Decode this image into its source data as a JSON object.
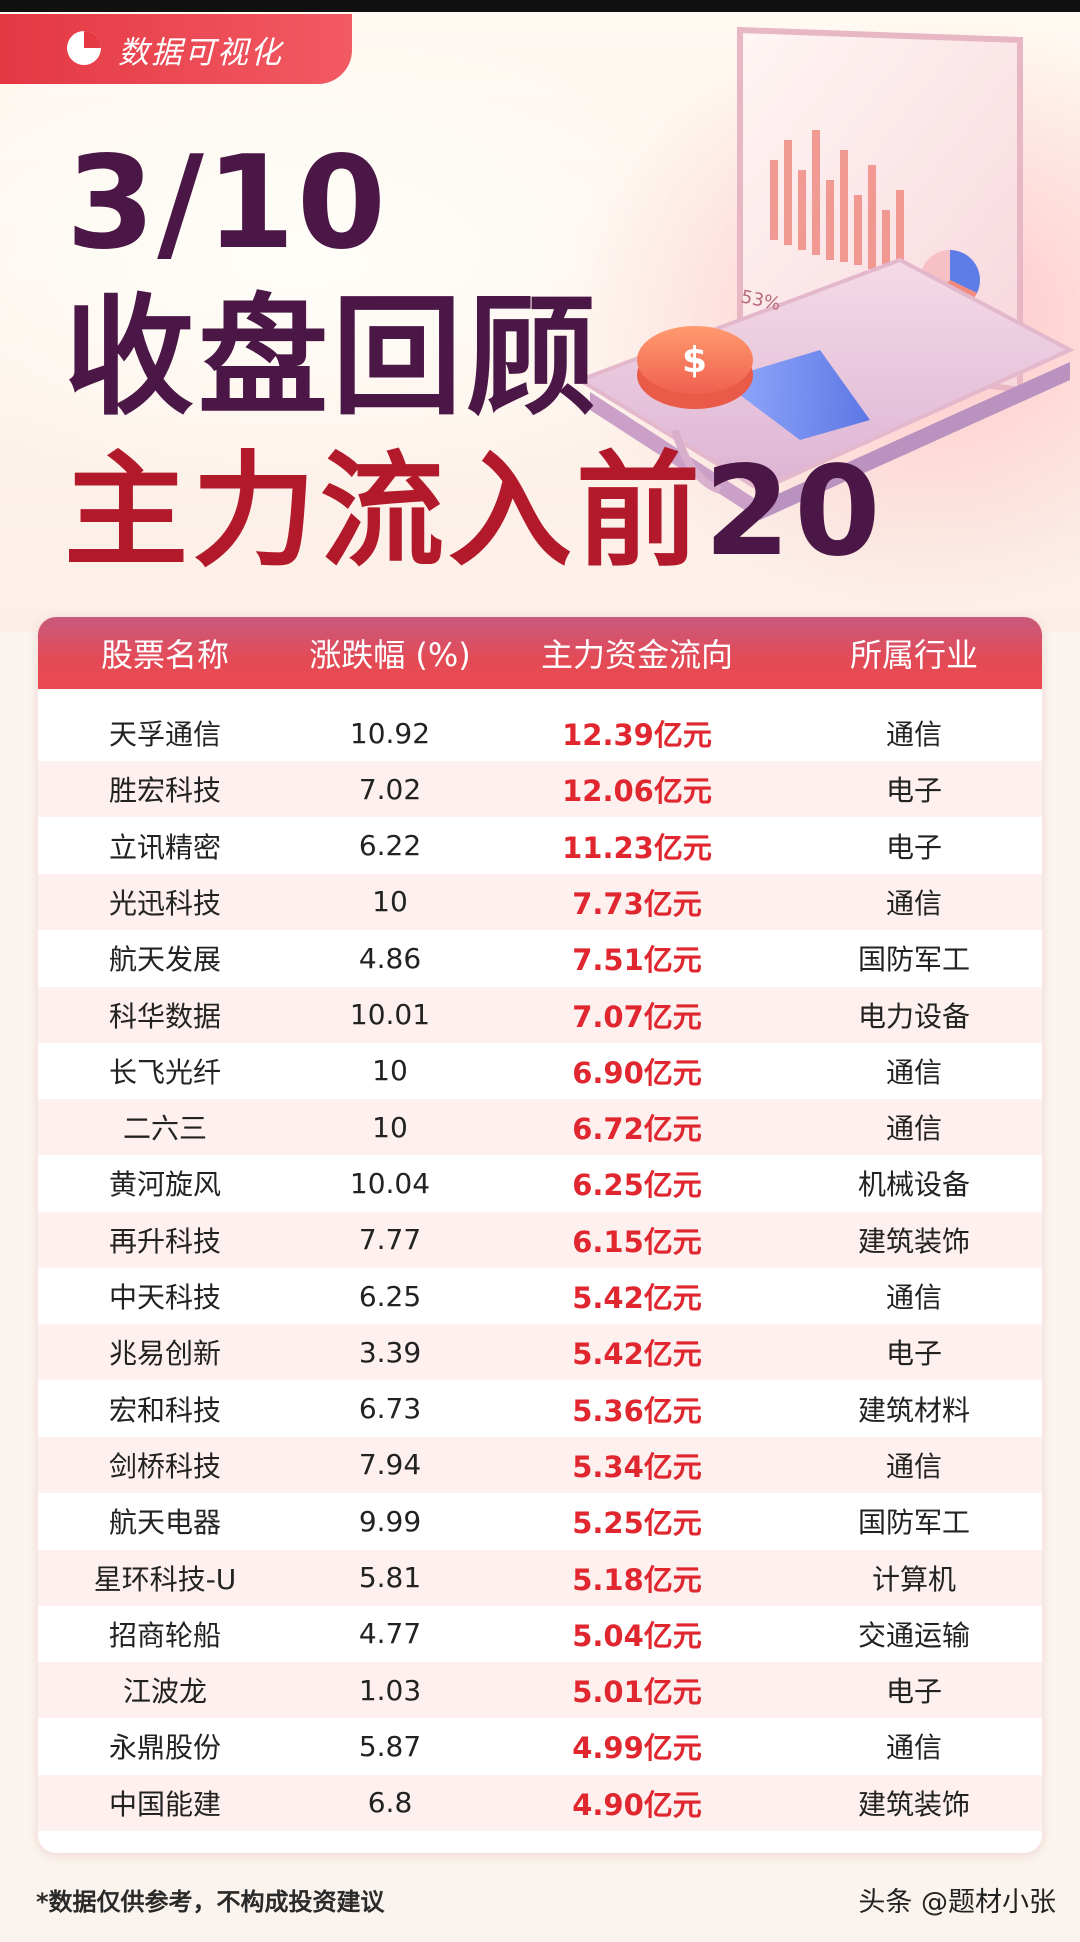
{
  "badge": {
    "label": "数据可视化",
    "icon": "pie-chart-icon"
  },
  "title": {
    "date": "3/10",
    "main": "收盘回顾",
    "sub_text": "主力流入前",
    "sub_num": "20"
  },
  "illustration": {
    "percent_label": "53%",
    "currency_symbol": "$"
  },
  "table": {
    "headers": [
      "股票名称",
      "涨跌幅 (%)",
      "主力资金流向",
      "所属行业"
    ],
    "rows": [
      [
        "天孚通信",
        "10.92",
        "12.39亿元",
        "通信"
      ],
      [
        "胜宏科技",
        "7.02",
        "12.06亿元",
        "电子"
      ],
      [
        "立讯精密",
        "6.22",
        "11.23亿元",
        "电子"
      ],
      [
        "光迅科技",
        "10",
        "7.73亿元",
        "通信"
      ],
      [
        "航天发展",
        "4.86",
        "7.51亿元",
        "国防军工"
      ],
      [
        "科华数据",
        "10.01",
        "7.07亿元",
        "电力设备"
      ],
      [
        "长飞光纤",
        "10",
        "6.90亿元",
        "通信"
      ],
      [
        "二六三",
        "10",
        "6.72亿元",
        "通信"
      ],
      [
        "黄河旋风",
        "10.04",
        "6.25亿元",
        "机械设备"
      ],
      [
        "再升科技",
        "7.77",
        "6.15亿元",
        "建筑装饰"
      ],
      [
        "中天科技",
        "6.25",
        "5.42亿元",
        "通信"
      ],
      [
        "兆易创新",
        "3.39",
        "5.42亿元",
        "电子"
      ],
      [
        "宏和科技",
        "6.73",
        "5.36亿元",
        "建筑材料"
      ],
      [
        "剑桥科技",
        "7.94",
        "5.34亿元",
        "通信"
      ],
      [
        "航天电器",
        "9.99",
        "5.25亿元",
        "国防军工"
      ],
      [
        "星环科技-U",
        "5.81",
        "5.18亿元",
        "计算机"
      ],
      [
        "招商轮船",
        "4.77",
        "5.04亿元",
        "交通运输"
      ],
      [
        "江波龙",
        "1.03",
        "5.01亿元",
        "电子"
      ],
      [
        "永鼎股份",
        "5.87",
        "4.99亿元",
        "通信"
      ],
      [
        "中国能建",
        "6.8",
        "4.90亿元",
        "建筑装饰"
      ]
    ]
  },
  "footnote": "*数据仅供参考，不构成投资建议",
  "watermark": "头条 @题材小张",
  "colors": {
    "accent_red": "#e0262f",
    "title_purple": "#4a1746",
    "header_red": "#e44a55"
  }
}
